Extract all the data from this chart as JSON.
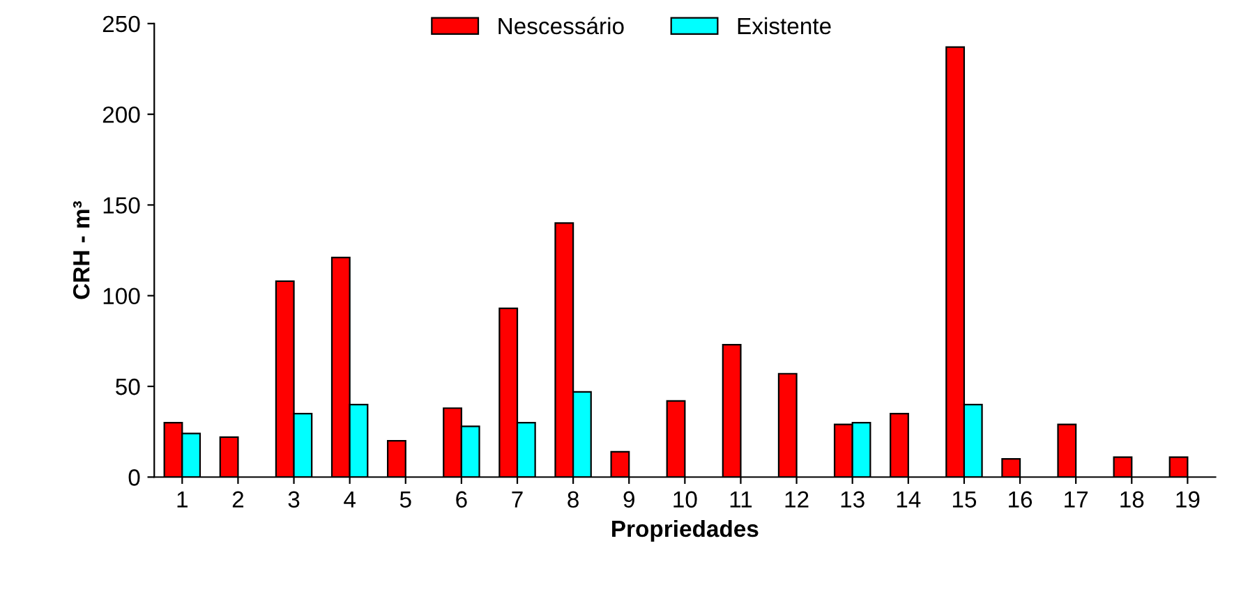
{
  "chart_data": {
    "type": "bar",
    "xlabel": "Propriedades",
    "ylabel": "CRH - m³",
    "categories": [
      "1",
      "2",
      "3",
      "4",
      "5",
      "6",
      "7",
      "8",
      "9",
      "10",
      "11",
      "12",
      "13",
      "14",
      "15",
      "16",
      "17",
      "18",
      "19"
    ],
    "series": [
      {
        "name": "Nescessário",
        "color": "#ff0000",
        "values": [
          30,
          22,
          108,
          121,
          20,
          38,
          93,
          140,
          14,
          42,
          73,
          57,
          29,
          35,
          237,
          10,
          29,
          11,
          11
        ]
      },
      {
        "name": "Existente",
        "color": "#00ffff",
        "values": [
          24,
          null,
          35,
          40,
          null,
          28,
          30,
          47,
          null,
          null,
          null,
          null,
          30,
          null,
          40,
          null,
          null,
          null,
          null
        ]
      }
    ],
    "ylim": [
      0,
      250
    ],
    "yticks": [
      0,
      50,
      100,
      150,
      200,
      250
    ],
    "grid": false,
    "legend": "top"
  }
}
